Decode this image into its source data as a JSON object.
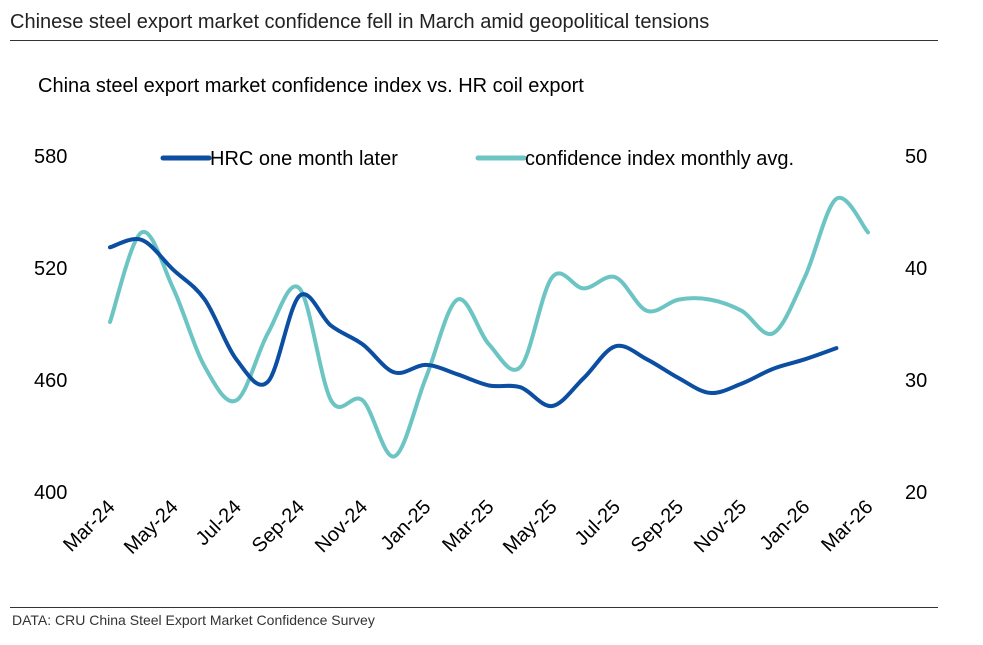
{
  "header": {
    "headline": "Chinese steel export market confidence fell in March amid geopolitical tensions"
  },
  "footer": {
    "source": "DATA: CRU China Steel Export Market Confidence Survey"
  },
  "chart_data": {
    "type": "line",
    "title": "China steel export market confidence index vs. HR coil export",
    "x": [
      "Mar-24",
      "Apr-24",
      "May-24",
      "Jun-24",
      "Jul-24",
      "Aug-24",
      "Sep-24",
      "Oct-24",
      "Nov-24",
      "Dec-24",
      "Jan-25",
      "Feb-25",
      "Mar-25",
      "Apr-25",
      "May-25",
      "Jun-25",
      "Jul-25",
      "Aug-25",
      "Sep-25",
      "Oct-25",
      "Nov-25",
      "Dec-25",
      "Jan-26",
      "Feb-26",
      "Mar-26"
    ],
    "x_tick_labels": [
      "Mar-24",
      "May-24",
      "Jul-24",
      "Sep-24",
      "Nov-24",
      "Jan-25",
      "Mar-25",
      "May-25",
      "Jul-25",
      "Sep-25",
      "Nov-25",
      "Jan-26",
      "Mar-26"
    ],
    "left_axis": {
      "ylim": [
        400,
        580
      ],
      "ticks": [
        400,
        460,
        520,
        580
      ]
    },
    "right_axis": {
      "ylim": [
        20,
        50
      ],
      "ticks": [
        20,
        30,
        40,
        50
      ]
    },
    "legend_position": "top",
    "series": [
      {
        "name": "HRC one month later",
        "axis": "left",
        "color": "#0b4ea2",
        "values": [
          530,
          534,
          518,
          502,
          470,
          458,
          504,
          488,
          478,
          463,
          467,
          462,
          456,
          455,
          445,
          460,
          477,
          470,
          460,
          452,
          457,
          465,
          470,
          476,
          null
        ]
      },
      {
        "name": "confidence index monthly avg.",
        "axis": "right",
        "color": "#6cc5c3",
        "values": [
          35,
          43,
          38,
          31,
          28,
          34,
          38,
          28,
          28,
          23,
          30,
          37,
          33,
          31,
          39,
          38,
          39,
          36,
          37,
          37,
          36,
          34,
          39,
          46,
          43
        ]
      }
    ]
  }
}
